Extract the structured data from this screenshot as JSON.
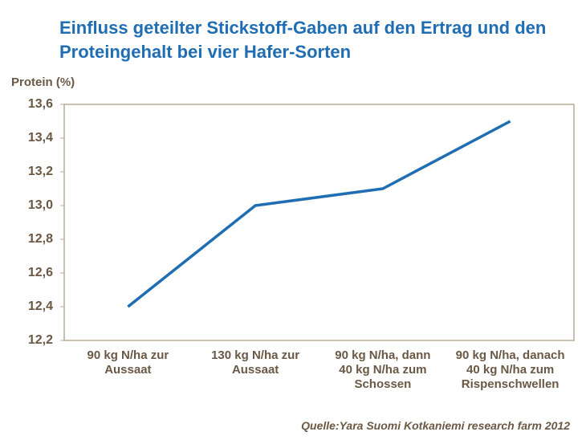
{
  "chart_data": {
    "type": "line",
    "title": "Einfluss geteilter Stickstoff-Gaben auf den Ertrag und den Proteingehalt bei vier Hafer-Sorten",
    "y_label": "Protein (%)",
    "source": "Quelle:Yara Suomi Kotkaniemi research farm 2012",
    "categories": [
      "90 kg N/ha zur Aussaat",
      "130 kg N/ha zur Aussaat",
      "90 kg N/ha, dann 40 kg N/ha zum Schossen",
      "90 kg N/ha, danach 40 kg N/ha zum Rispenschwellen"
    ],
    "values": [
      12.4,
      13.0,
      13.1,
      13.5
    ],
    "color": "#1f6db3",
    "ylim": [
      12.2,
      13.6
    ],
    "yticks": [
      {
        "value": 12.2,
        "label": "12,2"
      },
      {
        "value": 12.4,
        "label": "12,4"
      },
      {
        "value": 12.6,
        "label": "12,6"
      },
      {
        "value": 12.8,
        "label": "12,8"
      },
      {
        "value": 13.0,
        "label": "13,0"
      },
      {
        "value": 13.2,
        "label": "13,2"
      },
      {
        "value": 13.4,
        "label": "13,4"
      },
      {
        "value": 13.6,
        "label": "13,6"
      }
    ]
  }
}
